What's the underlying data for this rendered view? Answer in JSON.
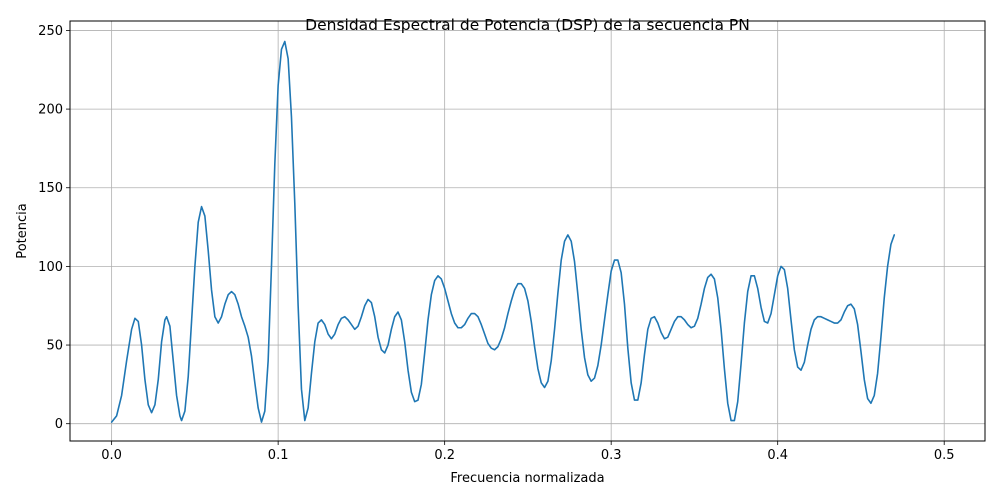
{
  "chart_data": {
    "type": "line",
    "title": "Densidad Espectral de Potencia (DSP) de la secuencia PN",
    "xlabel": "Frecuencia normalizada",
    "ylabel": "Potencia",
    "xlim": [
      -0.025,
      0.5245
    ],
    "ylim": [
      -11,
      256
    ],
    "grid": true,
    "line_color": "#1f77b4",
    "x_ticks": [
      0.0,
      0.1,
      0.2,
      0.3,
      0.4,
      0.5
    ],
    "x_tick_labels": [
      "0.0",
      "0.1",
      "0.2",
      "0.3",
      "0.4",
      "0.5"
    ],
    "y_ticks": [
      0,
      50,
      100,
      150,
      200,
      250
    ],
    "y_tick_labels": [
      "0",
      "50",
      "100",
      "150",
      "200",
      "250"
    ],
    "series": [
      {
        "name": "",
        "points": [
          [
            0.0,
            1
          ],
          [
            0.003,
            5
          ],
          [
            0.006,
            18
          ],
          [
            0.009,
            40
          ],
          [
            0.012,
            60
          ],
          [
            0.014,
            67
          ],
          [
            0.016,
            65
          ],
          [
            0.018,
            50
          ],
          [
            0.02,
            28
          ],
          [
            0.022,
            12
          ],
          [
            0.024,
            7
          ],
          [
            0.026,
            12
          ],
          [
            0.028,
            28
          ],
          [
            0.03,
            52
          ],
          [
            0.032,
            66
          ],
          [
            0.033,
            68
          ],
          [
            0.035,
            62
          ],
          [
            0.037,
            40
          ],
          [
            0.039,
            18
          ],
          [
            0.041,
            5
          ],
          [
            0.042,
            2
          ],
          [
            0.044,
            8
          ],
          [
            0.046,
            30
          ],
          [
            0.048,
            65
          ],
          [
            0.05,
            100
          ],
          [
            0.052,
            128
          ],
          [
            0.054,
            138
          ],
          [
            0.056,
            132
          ],
          [
            0.058,
            110
          ],
          [
            0.06,
            85
          ],
          [
            0.062,
            68
          ],
          [
            0.064,
            64
          ],
          [
            0.066,
            68
          ],
          [
            0.068,
            76
          ],
          [
            0.07,
            82
          ],
          [
            0.072,
            84
          ],
          [
            0.074,
            82
          ],
          [
            0.076,
            76
          ],
          [
            0.078,
            68
          ],
          [
            0.08,
            62
          ],
          [
            0.082,
            55
          ],
          [
            0.084,
            43
          ],
          [
            0.086,
            26
          ],
          [
            0.088,
            10
          ],
          [
            0.09,
            1
          ],
          [
            0.092,
            8
          ],
          [
            0.094,
            40
          ],
          [
            0.096,
            100
          ],
          [
            0.098,
            165
          ],
          [
            0.1,
            215
          ],
          [
            0.102,
            238
          ],
          [
            0.104,
            243
          ],
          [
            0.106,
            232
          ],
          [
            0.108,
            195
          ],
          [
            0.11,
            140
          ],
          [
            0.112,
            75
          ],
          [
            0.114,
            22
          ],
          [
            0.116,
            2
          ],
          [
            0.118,
            10
          ],
          [
            0.12,
            32
          ],
          [
            0.122,
            52
          ],
          [
            0.124,
            64
          ],
          [
            0.126,
            66
          ],
          [
            0.128,
            63
          ],
          [
            0.13,
            57
          ],
          [
            0.132,
            54
          ],
          [
            0.134,
            57
          ],
          [
            0.136,
            63
          ],
          [
            0.138,
            67
          ],
          [
            0.14,
            68
          ],
          [
            0.142,
            66
          ],
          [
            0.144,
            63
          ],
          [
            0.146,
            60
          ],
          [
            0.148,
            62
          ],
          [
            0.15,
            68
          ],
          [
            0.152,
            75
          ],
          [
            0.154,
            79
          ],
          [
            0.156,
            77
          ],
          [
            0.158,
            68
          ],
          [
            0.16,
            55
          ],
          [
            0.162,
            47
          ],
          [
            0.164,
            45
          ],
          [
            0.166,
            50
          ],
          [
            0.168,
            60
          ],
          [
            0.17,
            68
          ],
          [
            0.172,
            71
          ],
          [
            0.174,
            66
          ],
          [
            0.176,
            52
          ],
          [
            0.178,
            34
          ],
          [
            0.18,
            20
          ],
          [
            0.182,
            14
          ],
          [
            0.184,
            15
          ],
          [
            0.186,
            25
          ],
          [
            0.188,
            45
          ],
          [
            0.19,
            66
          ],
          [
            0.192,
            82
          ],
          [
            0.194,
            91
          ],
          [
            0.196,
            94
          ],
          [
            0.198,
            92
          ],
          [
            0.2,
            86
          ],
          [
            0.202,
            78
          ],
          [
            0.204,
            70
          ],
          [
            0.206,
            64
          ],
          [
            0.208,
            61
          ],
          [
            0.21,
            61
          ],
          [
            0.212,
            63
          ],
          [
            0.214,
            67
          ],
          [
            0.216,
            70
          ],
          [
            0.218,
            70
          ],
          [
            0.22,
            68
          ],
          [
            0.222,
            63
          ],
          [
            0.224,
            57
          ],
          [
            0.226,
            51
          ],
          [
            0.228,
            48
          ],
          [
            0.23,
            47
          ],
          [
            0.232,
            49
          ],
          [
            0.234,
            54
          ],
          [
            0.236,
            61
          ],
          [
            0.238,
            70
          ],
          [
            0.24,
            78
          ],
          [
            0.242,
            85
          ],
          [
            0.244,
            89
          ],
          [
            0.246,
            89
          ],
          [
            0.248,
            86
          ],
          [
            0.25,
            78
          ],
          [
            0.252,
            65
          ],
          [
            0.254,
            49
          ],
          [
            0.256,
            35
          ],
          [
            0.258,
            26
          ],
          [
            0.26,
            23
          ],
          [
            0.262,
            27
          ],
          [
            0.264,
            40
          ],
          [
            0.266,
            60
          ],
          [
            0.268,
            83
          ],
          [
            0.27,
            104
          ],
          [
            0.272,
            116
          ],
          [
            0.274,
            120
          ],
          [
            0.276,
            116
          ],
          [
            0.278,
            103
          ],
          [
            0.28,
            82
          ],
          [
            0.282,
            60
          ],
          [
            0.284,
            42
          ],
          [
            0.286,
            31
          ],
          [
            0.288,
            27
          ],
          [
            0.29,
            29
          ],
          [
            0.292,
            37
          ],
          [
            0.294,
            50
          ],
          [
            0.296,
            66
          ],
          [
            0.298,
            82
          ],
          [
            0.3,
            97
          ],
          [
            0.302,
            104
          ],
          [
            0.304,
            104
          ],
          [
            0.306,
            96
          ],
          [
            0.308,
            76
          ],
          [
            0.31,
            48
          ],
          [
            0.312,
            26
          ],
          [
            0.314,
            15
          ],
          [
            0.316,
            15
          ],
          [
            0.318,
            26
          ],
          [
            0.32,
            44
          ],
          [
            0.322,
            60
          ],
          [
            0.324,
            67
          ],
          [
            0.326,
            68
          ],
          [
            0.328,
            64
          ],
          [
            0.33,
            58
          ],
          [
            0.332,
            54
          ],
          [
            0.334,
            55
          ],
          [
            0.336,
            60
          ],
          [
            0.338,
            65
          ],
          [
            0.34,
            68
          ],
          [
            0.342,
            68
          ],
          [
            0.344,
            66
          ],
          [
            0.346,
            63
          ],
          [
            0.348,
            61
          ],
          [
            0.35,
            62
          ],
          [
            0.352,
            67
          ],
          [
            0.354,
            76
          ],
          [
            0.356,
            86
          ],
          [
            0.358,
            93
          ],
          [
            0.36,
            95
          ],
          [
            0.362,
            92
          ],
          [
            0.364,
            80
          ],
          [
            0.366,
            60
          ],
          [
            0.368,
            35
          ],
          [
            0.37,
            13
          ],
          [
            0.372,
            2
          ],
          [
            0.374,
            2
          ],
          [
            0.376,
            14
          ],
          [
            0.378,
            38
          ],
          [
            0.38,
            64
          ],
          [
            0.382,
            84
          ],
          [
            0.384,
            94
          ],
          [
            0.386,
            94
          ],
          [
            0.388,
            86
          ],
          [
            0.39,
            74
          ],
          [
            0.392,
            65
          ],
          [
            0.394,
            64
          ],
          [
            0.396,
            70
          ],
          [
            0.398,
            82
          ],
          [
            0.4,
            94
          ],
          [
            0.402,
            100
          ],
          [
            0.404,
            98
          ],
          [
            0.406,
            86
          ],
          [
            0.408,
            66
          ],
          [
            0.41,
            47
          ],
          [
            0.412,
            36
          ],
          [
            0.414,
            34
          ],
          [
            0.416,
            39
          ],
          [
            0.418,
            50
          ],
          [
            0.42,
            60
          ],
          [
            0.422,
            66
          ],
          [
            0.424,
            68
          ],
          [
            0.426,
            68
          ],
          [
            0.428,
            67
          ],
          [
            0.43,
            66
          ],
          [
            0.432,
            65
          ],
          [
            0.434,
            64
          ],
          [
            0.436,
            64
          ],
          [
            0.438,
            66
          ],
          [
            0.44,
            71
          ],
          [
            0.442,
            75
          ],
          [
            0.444,
            76
          ],
          [
            0.446,
            73
          ],
          [
            0.448,
            63
          ],
          [
            0.45,
            46
          ],
          [
            0.452,
            28
          ],
          [
            0.454,
            16
          ],
          [
            0.456,
            13
          ],
          [
            0.458,
            18
          ],
          [
            0.46,
            32
          ],
          [
            0.462,
            55
          ],
          [
            0.464,
            80
          ],
          [
            0.466,
            100
          ],
          [
            0.468,
            114
          ],
          [
            0.47,
            120
          ]
        ]
      }
    ]
  }
}
